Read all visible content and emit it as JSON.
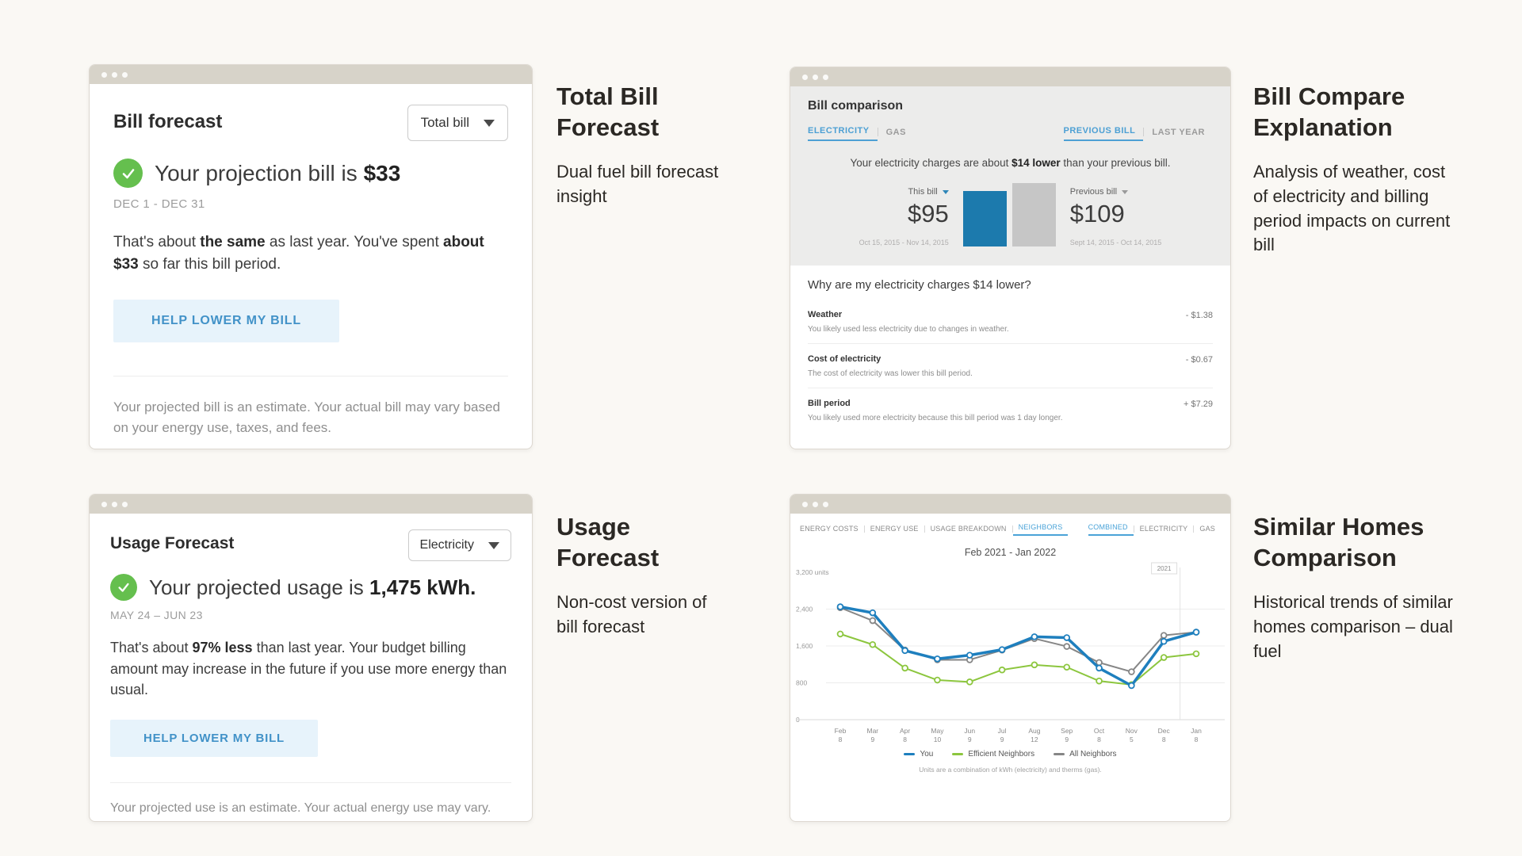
{
  "captions": {
    "total_bill": {
      "heading": "Total Bill Forecast",
      "body": "Dual fuel bill forecast insight"
    },
    "bill_compare": {
      "heading": "Bill Compare Explanation",
      "body": "Analysis of weather, cost of electricity and billing period impacts on current bill"
    },
    "usage": {
      "heading": "Usage Forecast",
      "body": "Non-cost version of bill forecast"
    },
    "similar": {
      "heading": "Similar Homes Comparison",
      "body": "Historical trends of similar homes comparison – dual fuel"
    }
  },
  "bill_forecast": {
    "title": "Bill forecast",
    "dropdown": "Total bill",
    "headline_prefix": "Your projection bill is ",
    "headline_value": "$33",
    "period": "DEC 1 - DEC 31",
    "body": [
      "That's about ",
      "the same",
      " as last year. You've spent ",
      "about $33",
      " so far this bill period."
    ],
    "cta": "HELP LOWER MY BILL",
    "footnote": "Your projected bill is an estimate. Your actual bill may vary based on your energy use, taxes, and fees."
  },
  "usage_forecast": {
    "title": "Usage Forecast",
    "dropdown": "Electricity",
    "headline_prefix": "Your projected usage is ",
    "headline_value": "1,475 kWh.",
    "period": "MAY 24 – JUN 23",
    "body": [
      "That's about ",
      "97% less",
      " than last year. Your budget billing amount may increase in the future if you use more energy than usual."
    ],
    "cta": "HELP LOWER MY BILL",
    "footnote": "Your projected use is an estimate. Your actual energy use may vary."
  },
  "bill_comparison": {
    "title": "Bill comparison",
    "fuel_tabs": [
      {
        "label": "ELECTRICITY"
      },
      {
        "label": "GAS"
      }
    ],
    "period_tabs": [
      {
        "label": "PREVIOUS BILL"
      },
      {
        "label": "LAST YEAR"
      }
    ],
    "message": [
      "Your electricity charges are about ",
      "$14 lower",
      " than your previous bill."
    ],
    "chart_data": {
      "type": "bar",
      "categories": [
        "This bill",
        "Previous bill"
      ],
      "values": [
        95,
        109
      ],
      "value_labels": [
        "$95",
        "$109"
      ],
      "date_ranges": [
        "Oct 15, 2015 - Nov 14, 2015",
        "Sept 14, 2015 - Oct 14, 2015"
      ],
      "colors": [
        "#1c7aad",
        "#c6c6c6"
      ]
    },
    "question": "Why are my electricity charges $14 lower?",
    "rows": [
      {
        "label": "Weather",
        "desc": "You likely used less electricity due to changes in weather.",
        "value": "- $1.38"
      },
      {
        "label": "Cost of electricity",
        "desc": "The cost of electricity was lower this bill period.",
        "value": "- $0.67"
      },
      {
        "label": "Bill period",
        "desc": "You likely used more electricity because this bill period was 1 day longer.",
        "value": "+ $7.29"
      }
    ]
  },
  "neighbors": {
    "view_tabs": [
      {
        "label": "ENERGY COSTS"
      },
      {
        "label": "ENERGY USE"
      },
      {
        "label": "USAGE BREAKDOWN"
      },
      {
        "label": "NEIGHBORS"
      }
    ],
    "fuel_tabs": [
      {
        "label": "COMBINED"
      },
      {
        "label": "ELECTRICITY"
      },
      {
        "label": "GAS"
      }
    ],
    "chart_data": {
      "type": "line",
      "title": "Feb 2021 - Jan 2022",
      "x_ticks": [
        {
          "month": "Feb",
          "day": "8"
        },
        {
          "month": "Mar",
          "day": "9"
        },
        {
          "month": "Apr",
          "day": "8"
        },
        {
          "month": "May",
          "day": "10"
        },
        {
          "month": "Jun",
          "day": "9"
        },
        {
          "month": "Jul",
          "day": "9"
        },
        {
          "month": "Aug",
          "day": "12"
        },
        {
          "month": "Sep",
          "day": "9"
        },
        {
          "month": "Oct",
          "day": "8"
        },
        {
          "month": "Nov",
          "day": "5"
        },
        {
          "month": "Dec",
          "day": "8"
        },
        {
          "month": "Jan",
          "day": "8"
        }
      ],
      "series": [
        {
          "name": "You",
          "color": "#1e7fbe",
          "width": 3.5,
          "values": [
            2450,
            2320,
            1500,
            1320,
            1400,
            1520,
            1800,
            1780,
            1120,
            740,
            1700,
            1900
          ]
        },
        {
          "name": "Efficient Neighbors",
          "color": "#8cc63e",
          "width": 2,
          "values": [
            1860,
            1630,
            1120,
            860,
            820,
            1080,
            1190,
            1140,
            840,
            760,
            1350,
            1430
          ]
        },
        {
          "name": "All Neighbors",
          "color": "#868686",
          "width": 2,
          "values": [
            2430,
            2150,
            1510,
            1300,
            1300,
            1510,
            1760,
            1590,
            1240,
            1040,
            1830,
            1900
          ]
        }
      ],
      "ylim": [
        0,
        3200
      ],
      "yticks": [
        {
          "value": 3200,
          "label": "3,200 units"
        },
        {
          "value": 2400,
          "label": "2,400"
        },
        {
          "value": 1600,
          "label": "1,600"
        },
        {
          "value": 800,
          "label": "800"
        },
        {
          "value": 0,
          "label": "0"
        }
      ],
      "grid": true,
      "legend_position": "bottom",
      "annotation": {
        "label": "2021",
        "between": [
          10,
          11
        ]
      },
      "footnote": "Units are a combination of kWh (electricity) and therms (gas)."
    }
  }
}
